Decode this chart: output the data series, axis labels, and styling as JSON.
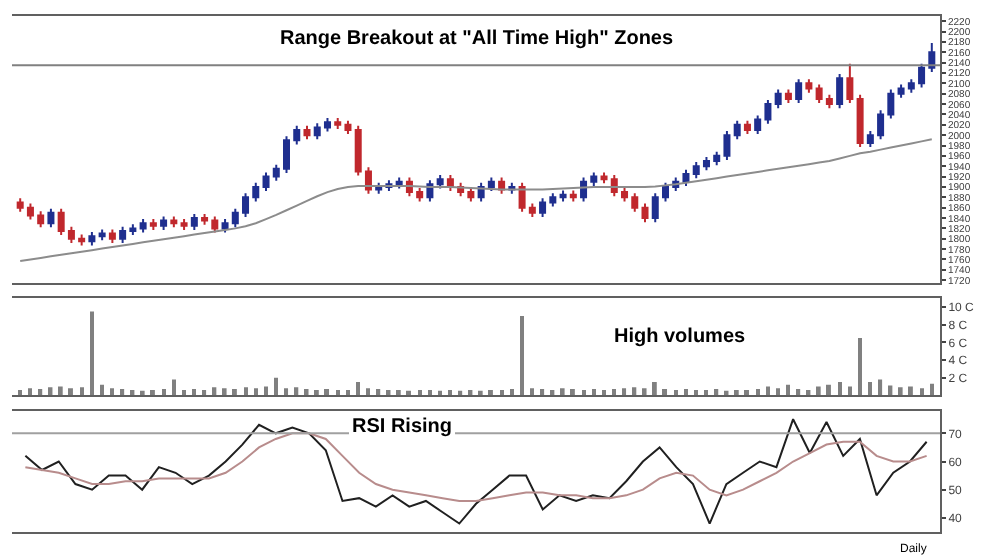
{
  "chart_data": [
    {
      "type": "candlestick",
      "annotations": [
        "Range Breakout at \"All Time High\" Zones"
      ],
      "categories": [
        null,
        null,
        null,
        null,
        null,
        null,
        null,
        null,
        null,
        null,
        null,
        null,
        null,
        null,
        null,
        null,
        null,
        null,
        null,
        null,
        null,
        null,
        null,
        null,
        null,
        null,
        null,
        null,
        null,
        null,
        null,
        null,
        null,
        null,
        null,
        null,
        null,
        null,
        null,
        null,
        null,
        null,
        null,
        null,
        null,
        null,
        null,
        null,
        null,
        null,
        null,
        null,
        null,
        null,
        null,
        null,
        null,
        null,
        null,
        null,
        null,
        null,
        null,
        null,
        null,
        null,
        null,
        null,
        null,
        null,
        null,
        null,
        null,
        null,
        null,
        null,
        null,
        null,
        null,
        null,
        null,
        null,
        null,
        null,
        null,
        null,
        null,
        null,
        null,
        null
      ],
      "ohlc": [
        [
          1870,
          1878,
          1852,
          1860
        ],
        [
          1860,
          1868,
          1837,
          1845
        ],
        [
          1845,
          1853,
          1822,
          1830
        ],
        [
          1830,
          1858,
          1822,
          1850
        ],
        [
          1850,
          1858,
          1807,
          1815
        ],
        [
          1815,
          1823,
          1792,
          1800
        ],
        [
          1800,
          1808,
          1787,
          1795
        ],
        [
          1795,
          1813,
          1787,
          1805
        ],
        [
          1805,
          1818,
          1797,
          1810
        ],
        [
          1810,
          1818,
          1792,
          1800
        ],
        [
          1800,
          1823,
          1792,
          1815
        ],
        [
          1815,
          1828,
          1807,
          1820
        ],
        [
          1820,
          1838,
          1812,
          1830
        ],
        [
          1830,
          1838,
          1817,
          1825
        ],
        [
          1825,
          1843,
          1817,
          1835
        ],
        [
          1835,
          1843,
          1822,
          1830
        ],
        [
          1830,
          1838,
          1817,
          1825
        ],
        [
          1825,
          1848,
          1817,
          1840
        ],
        [
          1840,
          1848,
          1827,
          1835
        ],
        [
          1835,
          1843,
          1812,
          1820
        ],
        [
          1820,
          1838,
          1812,
          1830
        ],
        [
          1830,
          1858,
          1822,
          1850
        ],
        [
          1850,
          1888,
          1842,
          1880
        ],
        [
          1880,
          1908,
          1872,
          1900
        ],
        [
          1900,
          1928,
          1892,
          1920
        ],
        [
          1920,
          1943,
          1912,
          1935
        ],
        [
          1935,
          1998,
          1927,
          1990
        ],
        [
          1990,
          2018,
          1982,
          2010
        ],
        [
          2010,
          2018,
          1992,
          2000
        ],
        [
          2000,
          2023,
          1992,
          2015
        ],
        [
          2015,
          2033,
          2007,
          2025
        ],
        [
          2025,
          2033,
          2012,
          2020
        ],
        [
          2020,
          2028,
          2002,
          2010
        ],
        [
          2010,
          2018,
          1922,
          1930
        ],
        [
          1930,
          1938,
          1887,
          1895
        ],
        [
          1895,
          1908,
          1887,
          1900
        ],
        [
          1900,
          1913,
          1892,
          1905
        ],
        [
          1905,
          1918,
          1897,
          1910
        ],
        [
          1910,
          1918,
          1882,
          1890
        ],
        [
          1890,
          1898,
          1872,
          1880
        ],
        [
          1880,
          1913,
          1872,
          1905
        ],
        [
          1905,
          1923,
          1897,
          1915
        ],
        [
          1915,
          1923,
          1892,
          1900
        ],
        [
          1900,
          1908,
          1882,
          1890
        ],
        [
          1890,
          1898,
          1872,
          1880
        ],
        [
          1880,
          1908,
          1872,
          1900
        ],
        [
          1900,
          1918,
          1892,
          1910
        ],
        [
          1910,
          1918,
          1887,
          1895
        ],
        [
          1895,
          1908,
          1887,
          1900
        ],
        [
          1900,
          1908,
          1852,
          1860
        ],
        [
          1860,
          1868,
          1842,
          1850
        ],
        [
          1850,
          1878,
          1842,
          1870
        ],
        [
          1870,
          1888,
          1862,
          1880
        ],
        [
          1880,
          1893,
          1872,
          1885
        ],
        [
          1885,
          1893,
          1872,
          1880
        ],
        [
          1880,
          1918,
          1872,
          1910
        ],
        [
          1910,
          1928,
          1902,
          1920
        ],
        [
          1920,
          1928,
          1907,
          1915
        ],
        [
          1915,
          1923,
          1882,
          1890
        ],
        [
          1890,
          1898,
          1872,
          1880
        ],
        [
          1880,
          1888,
          1852,
          1860
        ],
        [
          1860,
          1868,
          1832,
          1840
        ],
        [
          1840,
          1888,
          1832,
          1880
        ],
        [
          1880,
          1908,
          1872,
          1900
        ],
        [
          1900,
          1918,
          1892,
          1910
        ],
        [
          1910,
          1933,
          1902,
          1925
        ],
        [
          1925,
          1948,
          1917,
          1940
        ],
        [
          1940,
          1958,
          1932,
          1950
        ],
        [
          1950,
          1968,
          1942,
          1960
        ],
        [
          1960,
          2008,
          1952,
          2000
        ],
        [
          2000,
          2028,
          1992,
          2020
        ],
        [
          2020,
          2028,
          2002,
          2010
        ],
        [
          2010,
          2038,
          2002,
          2030
        ],
        [
          2030,
          2068,
          2022,
          2060
        ],
        [
          2060,
          2088,
          2052,
          2080
        ],
        [
          2080,
          2088,
          2062,
          2070
        ],
        [
          2070,
          2108,
          2062,
          2100
        ],
        [
          2100,
          2108,
          2082,
          2090
        ],
        [
          2090,
          2098,
          2062,
          2070
        ],
        [
          2070,
          2078,
          2052,
          2060
        ],
        [
          2060,
          2118,
          2052,
          2110
        ],
        [
          2110,
          2138,
          2062,
          2070
        ],
        [
          2070,
          2078,
          1977,
          1985
        ],
        [
          1985,
          2008,
          1977,
          2000
        ],
        [
          2000,
          2048,
          1992,
          2040
        ],
        [
          2040,
          2088,
          2032,
          2080
        ],
        [
          2080,
          2098,
          2072,
          2090
        ],
        [
          2090,
          2108,
          2082,
          2100
        ],
        [
          2100,
          2138,
          2092,
          2130
        ],
        [
          2130,
          2178,
          2122,
          2160
        ]
      ],
      "colors": [
        "#c0282d",
        "#c0282d",
        "#c0282d",
        "#1f2f8f",
        "#c0282d",
        "#c0282d",
        "#c0282d",
        "#1f2f8f",
        "#1f2f8f",
        "#c0282d",
        "#1f2f8f",
        "#1f2f8f",
        "#1f2f8f",
        "#c0282d",
        "#1f2f8f",
        "#c0282d",
        "#c0282d",
        "#1f2f8f",
        "#c0282d",
        "#c0282d",
        "#1f2f8f",
        "#1f2f8f",
        "#1f2f8f",
        "#1f2f8f",
        "#1f2f8f",
        "#1f2f8f",
        "#1f2f8f",
        "#1f2f8f",
        "#c0282d",
        "#1f2f8f",
        "#1f2f8f",
        "#c0282d",
        "#c0282d",
        "#c0282d",
        "#c0282d",
        "#1f2f8f",
        "#1f2f8f",
        "#1f2f8f",
        "#c0282d",
        "#c0282d",
        "#1f2f8f",
        "#1f2f8f",
        "#c0282d",
        "#c0282d",
        "#c0282d",
        "#1f2f8f",
        "#1f2f8f",
        "#c0282d",
        "#1f2f8f",
        "#c0282d",
        "#c0282d",
        "#1f2f8f",
        "#1f2f8f",
        "#1f2f8f",
        "#c0282d",
        "#1f2f8f",
        "#1f2f8f",
        "#c0282d",
        "#c0282d",
        "#c0282d",
        "#c0282d",
        "#c0282d",
        "#1f2f8f",
        "#1f2f8f",
        "#1f2f8f",
        "#1f2f8f",
        "#1f2f8f",
        "#1f2f8f",
        "#1f2f8f",
        "#1f2f8f",
        "#1f2f8f",
        "#c0282d",
        "#1f2f8f",
        "#1f2f8f",
        "#1f2f8f",
        "#c0282d",
        "#1f2f8f",
        "#c0282d",
        "#c0282d",
        "#c0282d",
        "#1f2f8f",
        "#c0282d",
        "#c0282d",
        "#1f2f8f",
        "#1f2f8f",
        "#1f2f8f",
        "#1f2f8f",
        "#1f2f8f",
        "#1f2f8f",
        "#1f2f8f"
      ],
      "series": [
        {
          "type": "line",
          "color": "#8c8c8c",
          "values": [
            1757,
            1760,
            1763,
            1766,
            1769,
            1772,
            1775,
            1778,
            1781,
            1784,
            1787,
            1790,
            1793,
            1796,
            1799,
            1802,
            1805,
            1808,
            1811,
            1814,
            1817,
            1820,
            1824,
            1830,
            1838,
            1846,
            1855,
            1864,
            1873,
            1882,
            1890,
            1896,
            1900,
            1902,
            1902,
            1902,
            1902,
            1902,
            1902,
            1901,
            1900,
            1900,
            1900,
            1899,
            1898,
            1897,
            1896,
            1895,
            1895,
            1895,
            1895,
            1895,
            1896,
            1897,
            1898,
            1899,
            1900,
            1900,
            1900,
            1900,
            1900,
            1900,
            1901,
            1903,
            1905,
            1908,
            1911,
            1914,
            1917,
            1920,
            1923,
            1926,
            1929,
            1932,
            1935,
            1938,
            1941,
            1944,
            1947,
            1950,
            1955,
            1960,
            1965,
            1968,
            1972,
            1976,
            1980,
            1984,
            1988,
            1992
          ]
        }
      ],
      "ref_lines": [
        {
          "axis": "y",
          "value": 2135,
          "color": "#808080"
        }
      ],
      "ylim": [
        1715,
        2230
      ],
      "yticks": [
        1720,
        1740,
        1760,
        1780,
        1800,
        1820,
        1840,
        1860,
        1880,
        1900,
        1920,
        1940,
        1960,
        1980,
        2000,
        2020,
        2040,
        2060,
        2080,
        2100,
        2120,
        2140,
        2160,
        2180,
        2200,
        2220
      ],
      "tick_labels": "y"
    },
    {
      "type": "bar",
      "annotations": [
        "High volumes"
      ],
      "categories": [
        null,
        null,
        null,
        null,
        null,
        null,
        null,
        null,
        null,
        null,
        null,
        null,
        null,
        null,
        null,
        null,
        null,
        null,
        null,
        null,
        null,
        null,
        null,
        null,
        null,
        null,
        null,
        null,
        null,
        null,
        null,
        null,
        null,
        null,
        null,
        null,
        null,
        null,
        null,
        null,
        null,
        null,
        null,
        null,
        null,
        null,
        null,
        null,
        null,
        null,
        null,
        null,
        null,
        null,
        null,
        null,
        null,
        null,
        null,
        null,
        null,
        null,
        null,
        null,
        null,
        null,
        null,
        null,
        null,
        null,
        null,
        null,
        null,
        null,
        null,
        null,
        null,
        null,
        null,
        null,
        null,
        null,
        null,
        null,
        null,
        null,
        null,
        null,
        null,
        null
      ],
      "values": [
        0.6,
        0.8,
        0.7,
        0.9,
        1.0,
        0.8,
        0.9,
        9.5,
        1.2,
        0.8,
        0.7,
        0.6,
        0.5,
        0.6,
        0.7,
        1.8,
        0.6,
        0.7,
        0.6,
        0.9,
        0.8,
        0.7,
        0.9,
        0.8,
        1.0,
        2.0,
        0.8,
        0.9,
        0.7,
        0.6,
        0.7,
        0.6,
        0.6,
        1.5,
        0.8,
        0.7,
        0.6,
        0.6,
        0.5,
        0.6,
        0.6,
        0.5,
        0.6,
        0.5,
        0.6,
        0.5,
        0.6,
        0.6,
        0.7,
        9.0,
        0.8,
        0.7,
        0.6,
        0.8,
        0.7,
        0.6,
        0.7,
        0.6,
        0.7,
        0.8,
        0.9,
        0.8,
        1.5,
        0.7,
        0.6,
        0.7,
        0.6,
        0.6,
        0.7,
        0.5,
        0.6,
        0.6,
        0.7,
        1.0,
        0.8,
        1.2,
        0.7,
        0.6,
        1.0,
        1.2,
        1.5,
        1.0,
        6.5,
        1.5,
        1.8,
        1.1,
        0.9,
        1.0,
        0.8,
        1.3
      ],
      "color": "#808080",
      "ylim": [
        0,
        11
      ],
      "yticks": [
        {
          "value": 2,
          "label": "2 C"
        },
        {
          "value": 4,
          "label": "4 C"
        },
        {
          "value": 6,
          "label": "6 C"
        },
        {
          "value": 8,
          "label": "8 C"
        },
        {
          "value": 10,
          "label": "10 C"
        }
      ],
      "tick_labels": "y"
    },
    {
      "type": "line",
      "annotations": [
        "RSI Rising",
        "Daily"
      ],
      "categories": [
        null,
        null,
        null,
        null,
        null,
        null,
        null,
        null,
        null,
        null,
        null,
        null,
        null,
        null,
        null,
        null,
        null,
        null,
        null,
        null,
        null,
        null,
        null,
        null,
        null,
        null,
        null,
        null,
        null,
        null,
        null,
        null,
        null,
        null,
        null,
        null,
        null,
        null,
        null,
        null,
        null,
        null,
        null,
        null,
        null,
        null,
        null,
        null,
        null,
        null,
        null,
        null,
        null,
        null,
        null
      ],
      "series": [
        {
          "color": "#202020",
          "values": [
            62,
            57,
            60,
            52,
            50,
            55,
            55,
            50,
            58,
            56,
            52,
            55,
            60,
            66,
            73,
            70,
            72,
            70,
            64,
            46,
            47,
            44,
            48,
            44,
            46,
            42,
            38,
            45,
            50,
            55,
            55,
            43,
            48,
            46,
            48,
            47,
            53,
            60,
            65,
            58,
            52,
            38,
            52,
            56,
            60,
            58,
            75,
            63,
            74,
            62,
            68,
            48,
            56,
            60,
            67
          ]
        },
        {
          "color": "#b88c8c",
          "values": [
            58,
            57,
            56,
            54,
            52,
            52,
            53,
            53,
            54,
            54,
            54,
            54,
            56,
            60,
            65,
            68,
            70,
            70,
            68,
            62,
            56,
            52,
            50,
            49,
            48,
            47,
            46,
            46,
            47,
            48,
            49,
            49,
            48,
            48,
            47,
            47,
            48,
            50,
            54,
            56,
            55,
            50,
            48,
            50,
            53,
            56,
            60,
            63,
            66,
            67,
            67,
            62,
            60,
            60,
            62
          ]
        }
      ],
      "ref_lines": [
        {
          "axis": "y",
          "value": 70,
          "color": "#a0a0a0"
        }
      ],
      "ylim": [
        35,
        78
      ],
      "yticks": [
        40,
        50,
        60,
        70
      ],
      "tick_labels": "y"
    }
  ]
}
